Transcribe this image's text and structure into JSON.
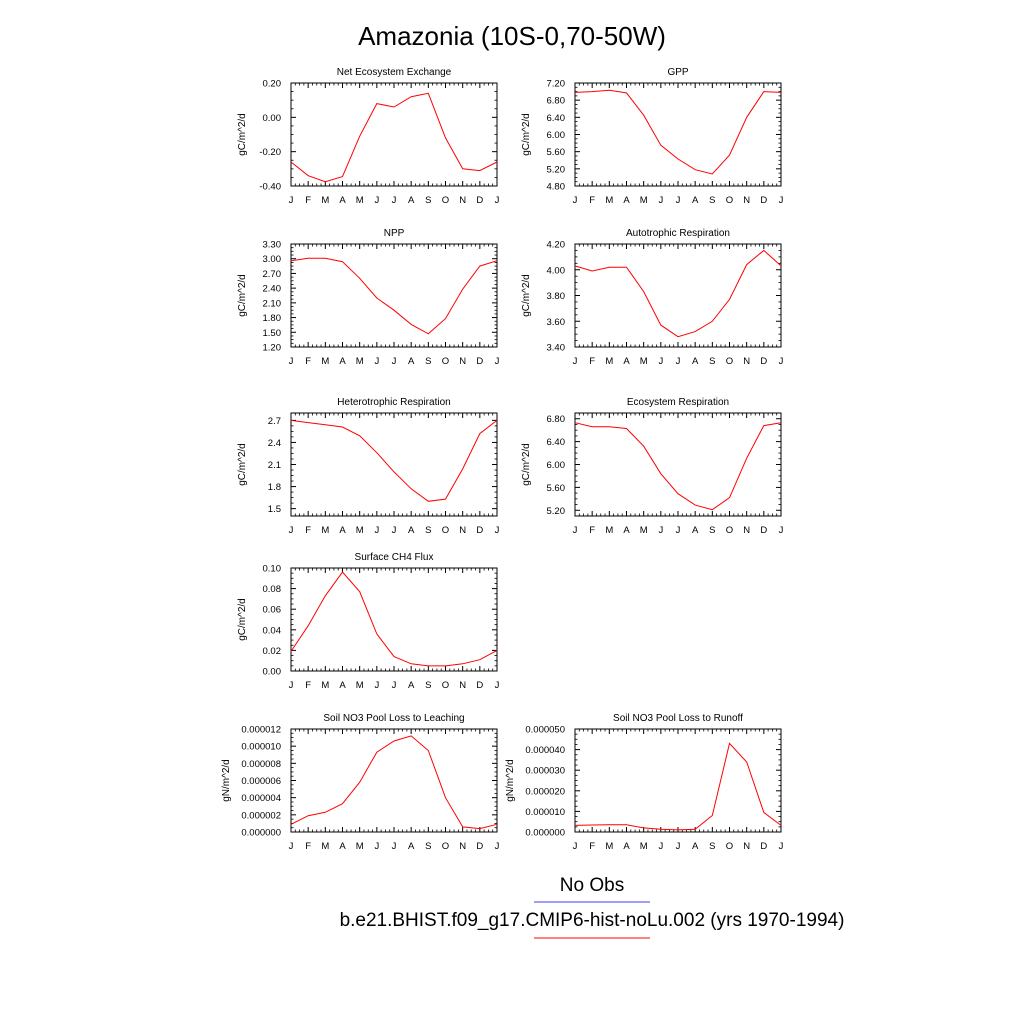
{
  "page_title": "Amazonia (10S-0,70-50W)",
  "legend": {
    "obs_label": "No Obs",
    "obs_color": "#3b3bff",
    "model_label": "b.e21.BHIST.f09_g17.CMIP6-hist-noLu.002 (yrs 1970-1994)",
    "model_color": "#ff0000"
  },
  "chart_data": [
    {
      "type": "line",
      "title": "Net Ecosystem Exchange",
      "ylabel": "gC/m^2/d",
      "x": [
        "J",
        "F",
        "M",
        "A",
        "M",
        "J",
        "J",
        "A",
        "S",
        "O",
        "N",
        "D",
        "J"
      ],
      "ylim": [
        -0.4,
        0.2
      ],
      "yticks": [
        -0.4,
        -0.2,
        0.0,
        0.2
      ],
      "ytick_labels": [
        "-0.40",
        "-0.20",
        "0.00",
        "0.20"
      ],
      "series": [
        {
          "values": [
            -0.26,
            -0.34,
            -0.375,
            -0.345,
            -0.11,
            0.08,
            0.06,
            0.12,
            0.14,
            -0.12,
            -0.3,
            -0.31,
            -0.26
          ]
        }
      ]
    },
    {
      "type": "line",
      "title": "GPP",
      "ylabel": "gC/m^2/d",
      "x": [
        "J",
        "F",
        "M",
        "A",
        "M",
        "J",
        "J",
        "A",
        "S",
        "O",
        "N",
        "D",
        "J"
      ],
      "ylim": [
        4.8,
        7.2
      ],
      "yticks": [
        4.8,
        5.2,
        5.6,
        6.0,
        6.4,
        6.8,
        7.2
      ],
      "ytick_labels": [
        "4.80",
        "5.20",
        "5.60",
        "6.00",
        "6.40",
        "6.80",
        "7.20"
      ],
      "series": [
        {
          "values": [
            6.98,
            7.0,
            7.03,
            6.97,
            6.45,
            5.75,
            5.43,
            5.18,
            5.08,
            5.52,
            6.4,
            7.0,
            6.98
          ]
        }
      ]
    },
    {
      "type": "line",
      "title": "NPP",
      "ylabel": "gC/m^2/d",
      "x": [
        "J",
        "F",
        "M",
        "A",
        "M",
        "J",
        "J",
        "A",
        "S",
        "O",
        "N",
        "D",
        "J"
      ],
      "ylim": [
        1.2,
        3.3
      ],
      "yticks": [
        1.2,
        1.5,
        1.8,
        2.1,
        2.4,
        2.7,
        3.0,
        3.3
      ],
      "ytick_labels": [
        "1.20",
        "1.50",
        "1.80",
        "2.10",
        "2.40",
        "2.70",
        "3.00",
        "3.30"
      ],
      "series": [
        {
          "values": [
            2.96,
            3.01,
            3.01,
            2.94,
            2.6,
            2.2,
            1.95,
            1.66,
            1.47,
            1.78,
            2.38,
            2.85,
            2.96
          ]
        }
      ]
    },
    {
      "type": "line",
      "title": "Autotrophic Respiration",
      "ylabel": "gC/m^2/d",
      "x": [
        "J",
        "F",
        "M",
        "A",
        "M",
        "J",
        "J",
        "A",
        "S",
        "O",
        "N",
        "D",
        "J"
      ],
      "ylim": [
        3.4,
        4.2
      ],
      "yticks": [
        3.4,
        3.6,
        3.8,
        4.0,
        4.2
      ],
      "ytick_labels": [
        "3.40",
        "3.60",
        "3.80",
        "4.00",
        "4.20"
      ],
      "series": [
        {
          "values": [
            4.03,
            3.99,
            4.02,
            4.02,
            3.83,
            3.57,
            3.48,
            3.52,
            3.6,
            3.77,
            4.04,
            4.15,
            4.03
          ]
        }
      ]
    },
    {
      "type": "line",
      "title": "Heterotrophic Respiration",
      "ylabel": "gC/m^2/d",
      "x": [
        "J",
        "F",
        "M",
        "A",
        "M",
        "J",
        "J",
        "A",
        "S",
        "O",
        "N",
        "D",
        "J"
      ],
      "ylim": [
        1.4,
        2.8
      ],
      "yticks": [
        1.5,
        1.8,
        2.1,
        2.4,
        2.7
      ],
      "ytick_labels": [
        "1.5",
        "1.8",
        "2.1",
        "2.4",
        "2.7"
      ],
      "series": [
        {
          "values": [
            2.7,
            2.67,
            2.64,
            2.61,
            2.49,
            2.26,
            2.0,
            1.77,
            1.6,
            1.63,
            2.04,
            2.52,
            2.7
          ]
        }
      ]
    },
    {
      "type": "line",
      "title": "Ecosystem Respiration",
      "ylabel": "gC/m^2/d",
      "x": [
        "J",
        "F",
        "M",
        "A",
        "M",
        "J",
        "J",
        "A",
        "S",
        "O",
        "N",
        "D",
        "J"
      ],
      "ylim": [
        5.1,
        6.9
      ],
      "yticks": [
        5.2,
        5.6,
        6.0,
        6.4,
        6.8
      ],
      "ytick_labels": [
        "5.20",
        "5.60",
        "6.00",
        "6.40",
        "6.80"
      ],
      "series": [
        {
          "values": [
            6.73,
            6.66,
            6.66,
            6.63,
            6.32,
            5.84,
            5.49,
            5.29,
            5.21,
            5.42,
            6.11,
            6.68,
            6.73
          ]
        }
      ]
    },
    {
      "type": "line",
      "title": "Surface CH4 Flux",
      "ylabel": "gC/m^2/d",
      "x": [
        "J",
        "F",
        "M",
        "A",
        "M",
        "J",
        "J",
        "A",
        "S",
        "O",
        "N",
        "D",
        "J"
      ],
      "ylim": [
        0.0,
        0.1
      ],
      "yticks": [
        0.0,
        0.02,
        0.04,
        0.06,
        0.08,
        0.1
      ],
      "ytick_labels": [
        "0.00",
        "0.02",
        "0.04",
        "0.06",
        "0.08",
        "0.10"
      ],
      "series": [
        {
          "values": [
            0.019,
            0.044,
            0.073,
            0.096,
            0.077,
            0.036,
            0.014,
            0.007,
            0.005,
            0.005,
            0.007,
            0.011,
            0.02
          ]
        }
      ]
    },
    {
      "type": "line",
      "title": "Soil NO3 Pool Loss to Leaching",
      "ylabel": "gN/m^2/d",
      "x": [
        "J",
        "F",
        "M",
        "A",
        "M",
        "J",
        "J",
        "A",
        "S",
        "O",
        "N",
        "D",
        "J"
      ],
      "ylim": [
        0,
        1.2e-05
      ],
      "yticks": [
        0,
        2e-06,
        4e-06,
        6e-06,
        8e-06,
        1e-05,
        1.2e-05
      ],
      "ytick_labels": [
        "0.000000",
        "0.000002",
        "0.000004",
        "0.000006",
        "0.000008",
        "0.000010",
        "0.000012"
      ],
      "series": [
        {
          "values": [
            9e-07,
            1.9e-06,
            2.3e-06,
            3.3e-06,
            5.8e-06,
            9.3e-06,
            1.06e-05,
            1.12e-05,
            9.5e-06,
            4e-06,
            6e-07,
            4e-07,
            9e-07
          ]
        }
      ]
    },
    {
      "type": "line",
      "title": "Soil NO3 Pool Loss to Runoff",
      "ylabel": "gN/m^2/d",
      "x": [
        "J",
        "F",
        "M",
        "A",
        "M",
        "J",
        "J",
        "A",
        "S",
        "O",
        "N",
        "D",
        "J"
      ],
      "ylim": [
        0,
        5e-05
      ],
      "yticks": [
        0,
        1e-05,
        2e-05,
        3e-05,
        4e-05,
        5e-05
      ],
      "ytick_labels": [
        "0.000000",
        "0.000010",
        "0.000020",
        "0.000030",
        "0.000040",
        "0.000050"
      ],
      "series": [
        {
          "values": [
            3.2e-06,
            3.4e-06,
            3.5e-06,
            3.5e-06,
            2e-06,
            1.3e-06,
            1e-06,
            1.3e-06,
            8e-06,
            4.3e-05,
            3.4e-05,
            9.5e-06,
            3.2e-06
          ]
        }
      ]
    }
  ]
}
